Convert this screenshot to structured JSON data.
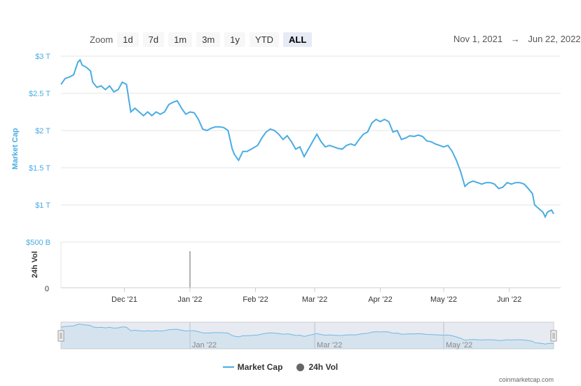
{
  "toolbar": {
    "zoom_label": "Zoom",
    "buttons": [
      "1d",
      "7d",
      "1m",
      "3m",
      "1y",
      "YTD",
      "ALL"
    ],
    "active_button": "ALL",
    "date_from": "Nov 1, 2021",
    "arrow": "→",
    "date_to": "Jun 22, 2022"
  },
  "legend": {
    "market_cap_label": "Market Cap",
    "volume_label": "24h Vol"
  },
  "credit": "coinmarketcap.com",
  "colors": {
    "market_cap": "#4aace3",
    "volume": "#666666",
    "navigator_fill": "#ccd6eb"
  },
  "chart_data": {
    "type": "line",
    "x_range": [
      "2021-11-01",
      "2022-06-22"
    ],
    "y_axis_title": "Market Cap",
    "y_ticks": [
      "$500 B",
      "$1 T",
      "$1.5 T",
      "$2 T",
      "$2.5 T",
      "$3 T"
    ],
    "y_tick_values": [
      0.5,
      1,
      1.5,
      2,
      2.5,
      3
    ],
    "ylim": [
      0.5,
      3.0
    ],
    "x_ticks": [
      "Dec '21",
      "Jan '22",
      "Feb '22",
      "Mar '22",
      "Apr '22",
      "May '22",
      "Jun '22"
    ],
    "x_tick_dates": [
      "2021-12-01",
      "2022-01-01",
      "2022-02-01",
      "2022-03-01",
      "2022-04-01",
      "2022-05-01",
      "2022-06-01"
    ],
    "volume_axis_title": "24h Vol",
    "volume_ticks": [
      "0"
    ],
    "navigator_ticks": [
      "Jan '22",
      "Mar '22",
      "May '22"
    ],
    "navigator_tick_dates": [
      "2022-01-01",
      "2022-03-01",
      "2022-05-01"
    ],
    "series": [
      {
        "name": "Market Cap",
        "unit": "T USD",
        "points": [
          [
            "2021-11-01",
            2.62
          ],
          [
            "2021-11-03",
            2.7
          ],
          [
            "2021-11-05",
            2.72
          ],
          [
            "2021-11-07",
            2.75
          ],
          [
            "2021-11-09",
            2.92
          ],
          [
            "2021-11-10",
            2.95
          ],
          [
            "2021-11-11",
            2.88
          ],
          [
            "2021-11-13",
            2.85
          ],
          [
            "2021-11-15",
            2.8
          ],
          [
            "2021-11-16",
            2.65
          ],
          [
            "2021-11-18",
            2.58
          ],
          [
            "2021-11-20",
            2.6
          ],
          [
            "2021-11-22",
            2.55
          ],
          [
            "2021-11-24",
            2.6
          ],
          [
            "2021-11-26",
            2.52
          ],
          [
            "2021-11-28",
            2.55
          ],
          [
            "2021-11-30",
            2.65
          ],
          [
            "2021-12-02",
            2.62
          ],
          [
            "2021-12-04",
            2.25
          ],
          [
            "2021-12-06",
            2.3
          ],
          [
            "2021-12-08",
            2.25
          ],
          [
            "2021-12-10",
            2.2
          ],
          [
            "2021-12-12",
            2.25
          ],
          [
            "2021-12-14",
            2.2
          ],
          [
            "2021-12-16",
            2.25
          ],
          [
            "2021-12-18",
            2.22
          ],
          [
            "2021-12-20",
            2.25
          ],
          [
            "2021-12-22",
            2.35
          ],
          [
            "2021-12-24",
            2.38
          ],
          [
            "2021-12-26",
            2.4
          ],
          [
            "2021-12-28",
            2.3
          ],
          [
            "2021-12-30",
            2.22
          ],
          [
            "2022-01-01",
            2.25
          ],
          [
            "2022-01-03",
            2.24
          ],
          [
            "2022-01-05",
            2.15
          ],
          [
            "2022-01-07",
            2.02
          ],
          [
            "2022-01-09",
            2.0
          ],
          [
            "2022-01-11",
            2.03
          ],
          [
            "2022-01-13",
            2.05
          ],
          [
            "2022-01-15",
            2.05
          ],
          [
            "2022-01-17",
            2.04
          ],
          [
            "2022-01-19",
            2.0
          ],
          [
            "2022-01-21",
            1.75
          ],
          [
            "2022-01-22",
            1.68
          ],
          [
            "2022-01-24",
            1.6
          ],
          [
            "2022-01-26",
            1.72
          ],
          [
            "2022-01-28",
            1.72
          ],
          [
            "2022-01-30",
            1.75
          ],
          [
            "2022-02-02",
            1.8
          ],
          [
            "2022-02-04",
            1.9
          ],
          [
            "2022-02-06",
            1.98
          ],
          [
            "2022-02-08",
            2.02
          ],
          [
            "2022-02-10",
            2.0
          ],
          [
            "2022-02-12",
            1.95
          ],
          [
            "2022-02-14",
            1.88
          ],
          [
            "2022-02-16",
            1.93
          ],
          [
            "2022-02-18",
            1.85
          ],
          [
            "2022-02-20",
            1.75
          ],
          [
            "2022-02-22",
            1.78
          ],
          [
            "2022-02-24",
            1.65
          ],
          [
            "2022-02-26",
            1.75
          ],
          [
            "2022-02-28",
            1.85
          ],
          [
            "2022-03-02",
            1.95
          ],
          [
            "2022-03-04",
            1.85
          ],
          [
            "2022-03-06",
            1.78
          ],
          [
            "2022-03-08",
            1.8
          ],
          [
            "2022-03-10",
            1.78
          ],
          [
            "2022-03-12",
            1.76
          ],
          [
            "2022-03-14",
            1.75
          ],
          [
            "2022-03-16",
            1.8
          ],
          [
            "2022-03-18",
            1.82
          ],
          [
            "2022-03-20",
            1.8
          ],
          [
            "2022-03-22",
            1.88
          ],
          [
            "2022-03-24",
            1.95
          ],
          [
            "2022-03-26",
            1.98
          ],
          [
            "2022-03-28",
            2.1
          ],
          [
            "2022-03-30",
            2.15
          ],
          [
            "2022-04-01",
            2.12
          ],
          [
            "2022-04-03",
            2.15
          ],
          [
            "2022-04-05",
            2.12
          ],
          [
            "2022-04-07",
            1.98
          ],
          [
            "2022-04-09",
            2.0
          ],
          [
            "2022-04-11",
            1.88
          ],
          [
            "2022-04-13",
            1.9
          ],
          [
            "2022-04-15",
            1.93
          ],
          [
            "2022-04-17",
            1.92
          ],
          [
            "2022-04-19",
            1.94
          ],
          [
            "2022-04-21",
            1.92
          ],
          [
            "2022-04-23",
            1.86
          ],
          [
            "2022-04-25",
            1.85
          ],
          [
            "2022-04-27",
            1.82
          ],
          [
            "2022-04-29",
            1.8
          ],
          [
            "2022-05-01",
            1.78
          ],
          [
            "2022-05-03",
            1.8
          ],
          [
            "2022-05-05",
            1.72
          ],
          [
            "2022-05-07",
            1.6
          ],
          [
            "2022-05-09",
            1.45
          ],
          [
            "2022-05-11",
            1.25
          ],
          [
            "2022-05-13",
            1.3
          ],
          [
            "2022-05-15",
            1.32
          ],
          [
            "2022-05-17",
            1.3
          ],
          [
            "2022-05-19",
            1.28
          ],
          [
            "2022-05-21",
            1.3
          ],
          [
            "2022-05-23",
            1.3
          ],
          [
            "2022-05-25",
            1.28
          ],
          [
            "2022-05-27",
            1.22
          ],
          [
            "2022-05-29",
            1.24
          ],
          [
            "2022-05-31",
            1.3
          ],
          [
            "2022-06-02",
            1.28
          ],
          [
            "2022-06-04",
            1.3
          ],
          [
            "2022-06-06",
            1.3
          ],
          [
            "2022-06-08",
            1.28
          ],
          [
            "2022-06-10",
            1.22
          ],
          [
            "2022-06-12",
            1.15
          ],
          [
            "2022-06-13",
            1.0
          ],
          [
            "2022-06-15",
            0.95
          ],
          [
            "2022-06-17",
            0.9
          ],
          [
            "2022-06-18",
            0.84
          ],
          [
            "2022-06-19",
            0.9
          ],
          [
            "2022-06-20",
            0.92
          ],
          [
            "2022-06-21",
            0.93
          ],
          [
            "2022-06-22",
            0.88
          ]
        ]
      },
      {
        "name": "24h Vol",
        "unit": "relative",
        "points": [
          [
            "2022-01-01",
            0.8
          ]
        ]
      }
    ]
  }
}
